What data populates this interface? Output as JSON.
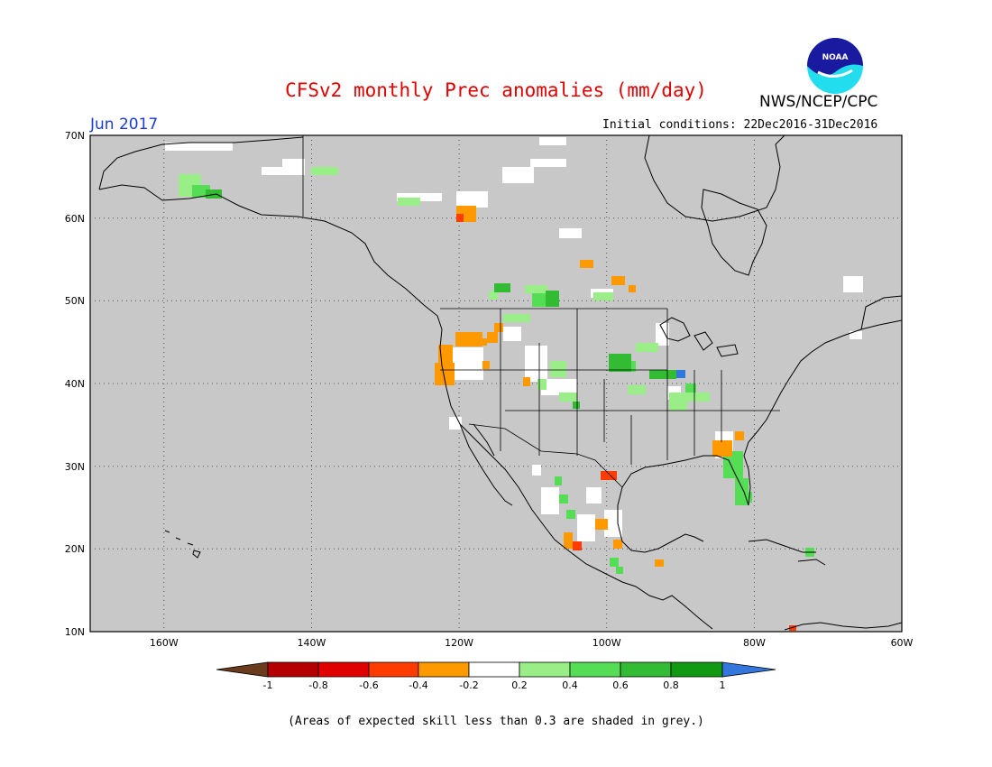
{
  "header": {
    "title": "CFSv2 monthly Prec anomalies (mm/day)",
    "agency": "NWS/NCEP/CPC",
    "logo_text": "NOAA",
    "month": "Jun 2017",
    "initial_conditions": "Initial conditions: 22Dec2016-31Dec2016"
  },
  "map": {
    "lat_labels": [
      "70N",
      "60N",
      "50N",
      "40N",
      "30N",
      "20N",
      "10N"
    ],
    "lon_labels": [
      "160W",
      "140W",
      "120W",
      "100W",
      "80W",
      "60W"
    ],
    "background_color": "#c8c8c8",
    "grid": "dotted"
  },
  "legend": {
    "ticks": [
      "-1",
      "-0.8",
      "-0.6",
      "-0.4",
      "-0.2",
      "0.2",
      "0.4",
      "0.6",
      "0.8",
      "1"
    ],
    "colors": [
      "#6b3b1e",
      "#b40000",
      "#e00000",
      "#ff3c00",
      "#ff9900",
      "#ffffff",
      "#99ee88",
      "#55dd55",
      "#33bb33",
      "#119911",
      "#3377dd"
    ]
  },
  "footnote": "(Areas of expected skill less than 0.3 are shaded in grey.)"
}
